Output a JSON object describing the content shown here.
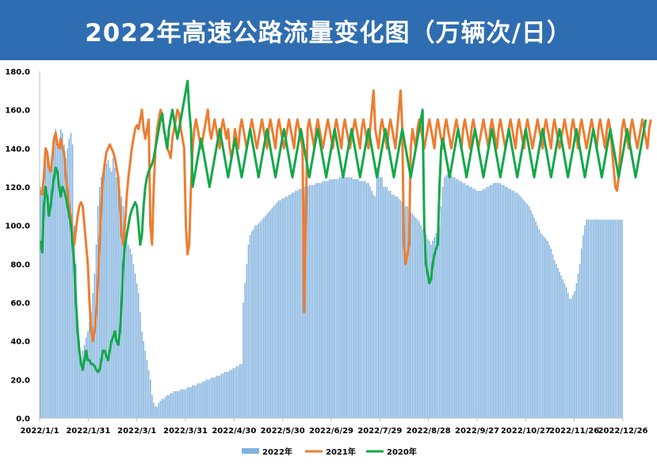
{
  "banner": {
    "title": "2022年高速公路流量变化图（万辆次/日）"
  },
  "colors": {
    "banner": "#2e6db1",
    "y2022": "#7fb1de",
    "y2021": "#ed7d31",
    "y2020": "#13a84a",
    "axis": "#bfbfbf"
  },
  "chart_data": {
    "type": "bar+line",
    "ylim": [
      0,
      180
    ],
    "yticks": [
      "0.0",
      "20.0",
      "40.0",
      "60.0",
      "80.0",
      "100.0",
      "120.0",
      "140.0",
      "160.0",
      "180.0"
    ],
    "xticks": [
      "2022/1/1",
      "2022/1/31",
      "2022/3/1",
      "2022/3/31",
      "2022/4/30",
      "2022/5/30",
      "2022/6/29",
      "2022/7/29",
      "2022/8/28",
      "2022/9/27",
      "2022/10/27",
      "2022/11/26",
      "2022/12/26"
    ],
    "grid": false,
    "legend_position": "bottom",
    "series": [
      {
        "name": "2022年",
        "type": "bar",
        "values": [
          120,
          118,
          125,
          140,
          138,
          130,
          128,
          135,
          145,
          150,
          145,
          140,
          150,
          148,
          142,
          135,
          140,
          145,
          148,
          142,
          100,
          80,
          50,
          40,
          30,
          35,
          38,
          42,
          45,
          50,
          55,
          65,
          75,
          90,
          110,
          120,
          125,
          128,
          130,
          132,
          134,
          130,
          128,
          135,
          130,
          125,
          120,
          118,
          115,
          110,
          100,
          95,
          90,
          88,
          85,
          80,
          75,
          70,
          65,
          55,
          45,
          40,
          35,
          30,
          25,
          20,
          12,
          8,
          6,
          6,
          8,
          9,
          10,
          10,
          11,
          12,
          12,
          13,
          13,
          14,
          14,
          14,
          14,
          15,
          15,
          15,
          15,
          16,
          16,
          16,
          17,
          17,
          17,
          18,
          18,
          18,
          19,
          19,
          20,
          20,
          20,
          21,
          21,
          21,
          22,
          22,
          22,
          23,
          23,
          24,
          24,
          24,
          25,
          25,
          26,
          26,
          27,
          27,
          28,
          28,
          60,
          70,
          80,
          90,
          95,
          97,
          98,
          100,
          100,
          101,
          102,
          103,
          104,
          105,
          106,
          107,
          108,
          109,
          110,
          111,
          112,
          113,
          113,
          114,
          114,
          115,
          115,
          116,
          116,
          117,
          117,
          118,
          118,
          119,
          119,
          120,
          120,
          120,
          120,
          121,
          121,
          121,
          121,
          122,
          122,
          122,
          122,
          123,
          123,
          123,
          123,
          124,
          124,
          124,
          124,
          124,
          124,
          125,
          125,
          125,
          125,
          125,
          125,
          125,
          125,
          124,
          124,
          124,
          124,
          123,
          123,
          123,
          123,
          122,
          122,
          120,
          118,
          116,
          115,
          130,
          130,
          125,
          125,
          120,
          120,
          120,
          118,
          118,
          116,
          116,
          115,
          115,
          114,
          113,
          112,
          111,
          110,
          110,
          108,
          107,
          106,
          105,
          104,
          103,
          102,
          100,
          98,
          96,
          95,
          93,
          92,
          90,
          92,
          94,
          96,
          98,
          100,
          110,
          120,
          125,
          126,
          127,
          127,
          126,
          125,
          125,
          124,
          124,
          123,
          123,
          122,
          122,
          121,
          121,
          120,
          120,
          119,
          119,
          118,
          118,
          118,
          118,
          119,
          119,
          120,
          120,
          121,
          121,
          122,
          122,
          122,
          122,
          122,
          121,
          121,
          120,
          120,
          119,
          119,
          118,
          118,
          117,
          117,
          116,
          115,
          114,
          113,
          112,
          111,
          110,
          108,
          106,
          104,
          102,
          100,
          98,
          96,
          95,
          94,
          93,
          92,
          90,
          88,
          85,
          82,
          80,
          78,
          76,
          74,
          72,
          70,
          68,
          65,
          62,
          62,
          64,
          66,
          70,
          75,
          80,
          88,
          95,
          100,
          103,
          103,
          103,
          103,
          103,
          103,
          103,
          103,
          103,
          103,
          103,
          103,
          103,
          103,
          103,
          103,
          103,
          103,
          103,
          103,
          103,
          103
        ]
      },
      {
        "name": "2021年",
        "type": "line",
        "values": [
          118,
          116,
          125,
          140,
          138,
          130,
          128,
          135,
          145,
          148,
          142,
          140,
          145,
          140,
          138,
          125,
          118,
          110,
          105,
          95,
          90,
          98,
          105,
          110,
          112,
          110,
          100,
          90,
          80,
          60,
          45,
          40,
          45,
          55,
          70,
          90,
          110,
          125,
          132,
          138,
          140,
          142,
          140,
          138,
          135,
          130,
          125,
          110,
          95,
          90,
          100,
          115,
          125,
          132,
          140,
          145,
          150,
          152,
          150,
          155,
          160,
          150,
          145,
          150,
          155,
          100,
          90,
          120,
          140,
          150,
          155,
          160,
          158,
          150,
          145,
          140,
          138,
          135,
          145,
          150,
          155,
          160,
          158,
          150,
          145,
          140,
          100,
          85,
          90,
          120,
          140,
          150,
          155,
          150,
          145,
          140,
          145,
          150,
          155,
          160,
          150,
          145,
          150,
          155,
          150,
          145,
          140,
          150,
          155,
          150,
          145,
          150,
          140,
          135,
          140,
          150,
          145,
          140,
          150,
          155,
          150,
          145,
          140,
          145,
          150,
          155,
          150,
          145,
          140,
          145,
          150,
          155,
          150,
          145,
          140,
          150,
          155,
          150,
          145,
          140,
          150,
          155,
          150,
          145,
          140,
          145,
          150,
          155,
          150,
          145,
          140,
          150,
          155,
          150,
          145,
          140,
          55,
          110,
          150,
          155,
          150,
          145,
          140,
          150,
          155,
          150,
          145,
          140,
          145,
          150,
          155,
          150,
          145,
          140,
          150,
          155,
          150,
          145,
          140,
          150,
          155,
          150,
          145,
          140,
          145,
          150,
          155,
          150,
          145,
          140,
          150,
          155,
          150,
          145,
          140,
          150,
          160,
          170,
          150,
          145,
          140,
          150,
          155,
          150,
          145,
          140,
          150,
          155,
          150,
          145,
          140,
          150,
          160,
          170,
          150,
          90,
          80,
          85,
          90,
          140,
          150,
          145,
          140,
          150,
          155,
          150,
          145,
          140,
          145,
          150,
          155,
          150,
          145,
          140,
          150,
          155,
          150,
          145,
          140,
          150,
          155,
          150,
          145,
          140,
          145,
          150,
          155,
          150,
          145,
          140,
          150,
          155,
          150,
          145,
          140,
          150,
          155,
          150,
          145,
          140,
          145,
          150,
          155,
          150,
          145,
          140,
          150,
          155,
          150,
          145,
          140,
          150,
          155,
          150,
          145,
          140,
          145,
          150,
          155,
          150,
          145,
          140,
          150,
          155,
          150,
          145,
          140,
          150,
          155,
          150,
          145,
          140,
          145,
          150,
          155,
          150,
          145,
          140,
          150,
          155,
          150,
          145,
          140,
          150,
          155,
          150,
          145,
          140,
          145,
          150,
          155,
          150,
          145,
          140,
          150,
          155,
          150,
          145,
          140,
          150,
          155,
          150,
          145,
          140,
          145,
          150,
          155,
          150,
          145,
          140,
          150,
          155,
          150,
          145,
          140,
          150,
          155,
          150,
          140,
          130,
          120,
          118,
          125,
          140,
          150,
          155,
          150,
          145,
          140,
          150,
          155,
          150,
          145,
          140,
          145,
          150,
          155,
          150,
          145,
          140,
          150,
          155
        ]
      },
      {
        "name": "2020年",
        "type": "line",
        "values": [
          92,
          86,
          110,
          120,
          115,
          105,
          110,
          118,
          125,
          130,
          128,
          120,
          115,
          120,
          118,
          115,
          110,
          105,
          100,
          90,
          80,
          60,
          45,
          35,
          28,
          25,
          30,
          35,
          30,
          30,
          28,
          28,
          27,
          25,
          24,
          25,
          30,
          35,
          35,
          32,
          30,
          35,
          40,
          42,
          45,
          40,
          38,
          45,
          60,
          80,
          90,
          95,
          100,
          105,
          108,
          110,
          112,
          110,
          100,
          90,
          95,
          110,
          120,
          125,
          128,
          130,
          132,
          135,
          140,
          145,
          150,
          155,
          158,
          150,
          145,
          140,
          150,
          155,
          160,
          155,
          150,
          145,
          150,
          155,
          160,
          165,
          170,
          175,
          160,
          150,
          120,
          125,
          130,
          135,
          140,
          145,
          140,
          135,
          130,
          125,
          120,
          125,
          130,
          135,
          140,
          145,
          150,
          145,
          140,
          135,
          130,
          125,
          130,
          135,
          140,
          145,
          140,
          135,
          130,
          125,
          130,
          135,
          140,
          145,
          150,
          145,
          140,
          135,
          130,
          125,
          130,
          135,
          140,
          145,
          150,
          145,
          140,
          135,
          130,
          125,
          130,
          135,
          140,
          145,
          150,
          145,
          140,
          135,
          130,
          125,
          130,
          135,
          140,
          145,
          150,
          145,
          140,
          135,
          130,
          125,
          130,
          135,
          140,
          145,
          150,
          145,
          140,
          135,
          130,
          125,
          130,
          135,
          140,
          145,
          150,
          145,
          140,
          135,
          130,
          125,
          130,
          135,
          140,
          145,
          150,
          145,
          140,
          135,
          130,
          125,
          130,
          135,
          140,
          145,
          150,
          145,
          140,
          135,
          130,
          125,
          130,
          135,
          140,
          145,
          150,
          145,
          140,
          135,
          130,
          125,
          130,
          135,
          140,
          145,
          150,
          145,
          140,
          135,
          130,
          125,
          130,
          135,
          140,
          145,
          150,
          155,
          160,
          100,
          80,
          75,
          70,
          72,
          80,
          85,
          88,
          90,
          120,
          140,
          145,
          140,
          135,
          130,
          125,
          130,
          135,
          140,
          145,
          150,
          145,
          140,
          135,
          130,
          125,
          130,
          135,
          140,
          145,
          150,
          145,
          140,
          135,
          130,
          125,
          130,
          135,
          140,
          145,
          150,
          145,
          140,
          135,
          130,
          125,
          130,
          135,
          140,
          145,
          150,
          145,
          140,
          135,
          130,
          125,
          130,
          135,
          140,
          145,
          150,
          145,
          140,
          135,
          130,
          125,
          130,
          135,
          140,
          145,
          150,
          145,
          140,
          135,
          130,
          125,
          130,
          135,
          140,
          145,
          150,
          145,
          140,
          135,
          130,
          125,
          130,
          135,
          140,
          145,
          150,
          145,
          140,
          135,
          130,
          125,
          130,
          135,
          140,
          145,
          150,
          145,
          140,
          135,
          130,
          125,
          130,
          135,
          140,
          145,
          150,
          145,
          140,
          135,
          130,
          125,
          130,
          135,
          140,
          145,
          150,
          145,
          140,
          135,
          130,
          125,
          130,
          135,
          140,
          145,
          150,
          155
        ]
      }
    ]
  }
}
